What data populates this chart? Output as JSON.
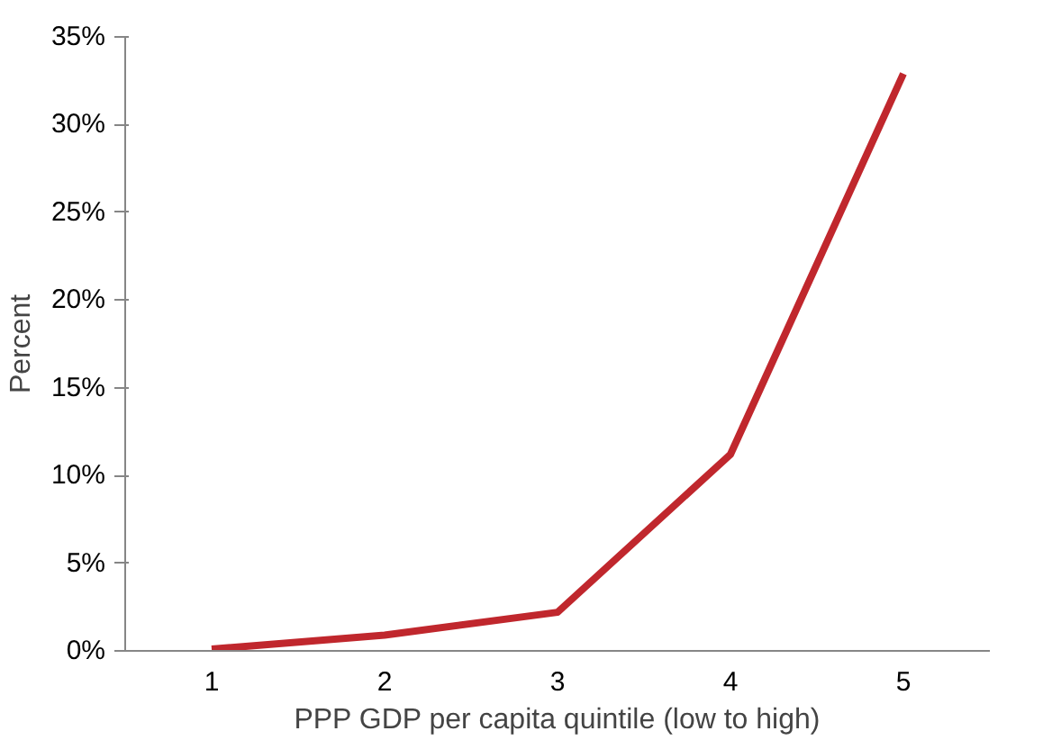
{
  "chart_data": {
    "type": "line",
    "xlabel": "PPP GDP per capita quintile (low to high)",
    "ylabel": "Percent",
    "categories": [
      "1",
      "2",
      "3",
      "4",
      "5"
    ],
    "series": [
      {
        "color": "#c0272d",
        "values": [
          0.1,
          0.9,
          2.2,
          11.2,
          32.9
        ]
      }
    ],
    "ylim": [
      0,
      35
    ],
    "yticks": [
      {
        "value": 0,
        "label": "0%"
      },
      {
        "value": 5,
        "label": "5%"
      },
      {
        "value": 10,
        "label": "10%"
      },
      {
        "value": 15,
        "label": "15%"
      },
      {
        "value": 20,
        "label": "20%"
      },
      {
        "value": 25,
        "label": "25%"
      },
      {
        "value": 30,
        "label": "30%"
      },
      {
        "value": 35,
        "label": "35%"
      }
    ],
    "grid": false,
    "marker": "none",
    "line_style": "solid"
  }
}
